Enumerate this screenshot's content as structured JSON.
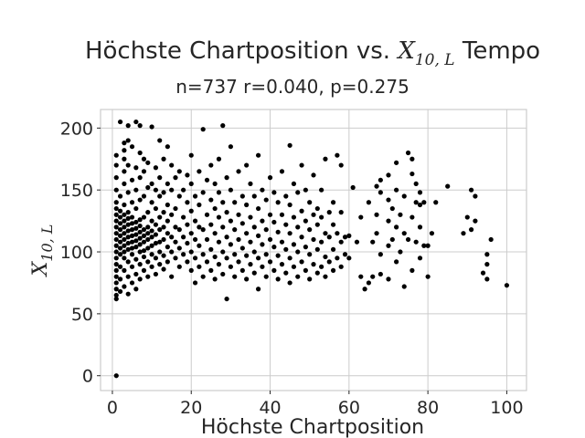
{
  "chart_data": {
    "type": "scatter",
    "title": {
      "prefix": "Höchste Chartposition vs. ",
      "math_base": "X",
      "math_sub": "10, L",
      "suffix": " Tempo"
    },
    "subtitle": "n=737 r=0.040, p=0.275",
    "xlabel": "Höchste Chartposition",
    "ylabel": {
      "math_base": "X",
      "math_sub": "10, L"
    },
    "xlim": [
      -3,
      105
    ],
    "ylim": [
      -12,
      215
    ],
    "xticks": [
      0,
      20,
      40,
      60,
      80,
      100
    ],
    "yticks": [
      0,
      50,
      100,
      150,
      200
    ],
    "grid": true,
    "marker_color": "#000000",
    "points": [
      [
        1,
        0
      ],
      [
        1,
        62
      ],
      [
        1,
        65
      ],
      [
        1,
        70
      ],
      [
        1,
        75
      ],
      [
        1,
        80
      ],
      [
        1,
        85
      ],
      [
        1,
        90
      ],
      [
        1,
        95
      ],
      [
        1,
        100
      ],
      [
        1,
        105
      ],
      [
        1,
        110
      ],
      [
        1,
        115
      ],
      [
        1,
        120
      ],
      [
        1,
        125
      ],
      [
        1,
        130
      ],
      [
        1,
        135
      ],
      [
        1,
        140
      ],
      [
        1,
        150
      ],
      [
        1,
        160
      ],
      [
        1,
        170
      ],
      [
        1,
        178
      ],
      [
        2,
        68
      ],
      [
        2,
        78
      ],
      [
        2,
        88
      ],
      [
        2,
        98
      ],
      [
        2,
        103
      ],
      [
        2,
        108
      ],
      [
        2,
        113
      ],
      [
        2,
        118
      ],
      [
        2,
        123
      ],
      [
        2,
        128
      ],
      [
        2,
        133
      ],
      [
        2,
        145
      ],
      [
        2,
        205
      ],
      [
        3,
        72
      ],
      [
        3,
        85
      ],
      [
        3,
        95
      ],
      [
        3,
        100
      ],
      [
        3,
        105
      ],
      [
        3,
        110
      ],
      [
        3,
        115
      ],
      [
        3,
        120
      ],
      [
        3,
        125
      ],
      [
        3,
        130
      ],
      [
        3,
        138
      ],
      [
        3,
        155
      ],
      [
        3,
        165
      ],
      [
        3,
        175
      ],
      [
        3,
        182
      ],
      [
        3,
        188
      ],
      [
        4,
        66
      ],
      [
        4,
        80
      ],
      [
        4,
        92
      ],
      [
        4,
        102
      ],
      [
        4,
        107
      ],
      [
        4,
        112
      ],
      [
        4,
        117
      ],
      [
        4,
        122
      ],
      [
        4,
        127
      ],
      [
        4,
        132
      ],
      [
        4,
        148
      ],
      [
        4,
        170
      ],
      [
        4,
        190
      ],
      [
        4,
        202
      ],
      [
        5,
        75
      ],
      [
        5,
        88
      ],
      [
        5,
        98
      ],
      [
        5,
        103
      ],
      [
        5,
        108
      ],
      [
        5,
        113
      ],
      [
        5,
        118
      ],
      [
        5,
        123
      ],
      [
        5,
        128
      ],
      [
        5,
        140
      ],
      [
        5,
        158
      ],
      [
        5,
        185
      ],
      [
        6,
        70
      ],
      [
        6,
        82
      ],
      [
        6,
        94
      ],
      [
        6,
        104
      ],
      [
        6,
        109
      ],
      [
        6,
        114
      ],
      [
        6,
        119
      ],
      [
        6,
        124
      ],
      [
        6,
        135
      ],
      [
        6,
        150
      ],
      [
        6,
        168
      ],
      [
        6,
        205
      ],
      [
        7,
        78
      ],
      [
        7,
        90
      ],
      [
        7,
        100
      ],
      [
        7,
        106
      ],
      [
        7,
        111
      ],
      [
        7,
        116
      ],
      [
        7,
        121
      ],
      [
        7,
        126
      ],
      [
        7,
        142
      ],
      [
        7,
        160
      ],
      [
        7,
        180
      ],
      [
        7,
        202
      ],
      [
        8,
        85
      ],
      [
        8,
        96
      ],
      [
        8,
        101
      ],
      [
        8,
        108
      ],
      [
        8,
        113
      ],
      [
        8,
        118
      ],
      [
        8,
        128
      ],
      [
        8,
        145
      ],
      [
        8,
        165
      ],
      [
        8,
        175
      ],
      [
        9,
        80
      ],
      [
        9,
        92
      ],
      [
        9,
        103
      ],
      [
        9,
        110
      ],
      [
        9,
        115
      ],
      [
        9,
        120
      ],
      [
        9,
        132
      ],
      [
        9,
        152
      ],
      [
        9,
        172
      ],
      [
        10,
        88
      ],
      [
        10,
        98
      ],
      [
        10,
        105
      ],
      [
        10,
        112
      ],
      [
        10,
        117
      ],
      [
        10,
        125
      ],
      [
        10,
        140
      ],
      [
        10,
        155
      ],
      [
        10,
        201
      ],
      [
        11,
        82
      ],
      [
        11,
        95
      ],
      [
        11,
        107
      ],
      [
        11,
        114
      ],
      [
        11,
        122
      ],
      [
        11,
        135
      ],
      [
        11,
        150
      ],
      [
        11,
        168
      ],
      [
        12,
        90
      ],
      [
        12,
        100
      ],
      [
        12,
        108
      ],
      [
        12,
        118
      ],
      [
        12,
        128
      ],
      [
        12,
        145
      ],
      [
        12,
        160
      ],
      [
        12,
        190
      ],
      [
        13,
        86
      ],
      [
        13,
        97
      ],
      [
        13,
        110
      ],
      [
        13,
        120
      ],
      [
        13,
        132
      ],
      [
        13,
        148
      ],
      [
        13,
        175
      ],
      [
        14,
        92
      ],
      [
        14,
        104
      ],
      [
        14,
        115
      ],
      [
        14,
        125
      ],
      [
        14,
        138
      ],
      [
        14,
        155
      ],
      [
        14,
        185
      ],
      [
        15,
        80
      ],
      [
        15,
        100
      ],
      [
        15,
        112
      ],
      [
        15,
        130
      ],
      [
        15,
        150
      ],
      [
        15,
        170
      ],
      [
        16,
        95
      ],
      [
        16,
        108
      ],
      [
        16,
        120
      ],
      [
        16,
        135
      ],
      [
        16,
        160
      ],
      [
        17,
        88
      ],
      [
        17,
        103
      ],
      [
        17,
        118
      ],
      [
        17,
        145
      ],
      [
        17,
        165
      ],
      [
        18,
        98
      ],
      [
        18,
        112
      ],
      [
        18,
        128
      ],
      [
        18,
        150
      ],
      [
        19,
        92
      ],
      [
        19,
        107
      ],
      [
        19,
        122
      ],
      [
        19,
        140
      ],
      [
        19,
        162
      ],
      [
        20,
        85
      ],
      [
        20,
        100
      ],
      [
        20,
        115
      ],
      [
        20,
        133
      ],
      [
        20,
        155
      ],
      [
        20,
        178
      ],
      [
        21,
        75
      ],
      [
        21,
        95
      ],
      [
        21,
        110
      ],
      [
        21,
        125
      ],
      [
        21,
        145
      ],
      [
        22,
        88
      ],
      [
        22,
        105
      ],
      [
        22,
        120
      ],
      [
        22,
        138
      ],
      [
        22,
        165
      ],
      [
        23,
        80
      ],
      [
        23,
        98
      ],
      [
        23,
        118
      ],
      [
        23,
        148
      ],
      [
        23,
        199
      ],
      [
        24,
        92
      ],
      [
        24,
        110
      ],
      [
        24,
        130
      ],
      [
        24,
        158
      ],
      [
        25,
        85
      ],
      [
        25,
        102
      ],
      [
        25,
        122
      ],
      [
        25,
        142
      ],
      [
        25,
        170
      ],
      [
        26,
        78
      ],
      [
        26,
        96
      ],
      [
        26,
        115
      ],
      [
        26,
        135
      ],
      [
        26,
        155
      ],
      [
        27,
        90
      ],
      [
        27,
        108
      ],
      [
        27,
        128
      ],
      [
        27,
        148
      ],
      [
        27,
        175
      ],
      [
        28,
        82
      ],
      [
        28,
        100
      ],
      [
        28,
        120
      ],
      [
        28,
        140
      ],
      [
        28,
        202
      ],
      [
        29,
        62
      ],
      [
        29,
        95
      ],
      [
        29,
        112
      ],
      [
        29,
        132
      ],
      [
        29,
        160
      ],
      [
        30,
        88
      ],
      [
        30,
        106
      ],
      [
        30,
        125
      ],
      [
        30,
        150
      ],
      [
        30,
        185
      ],
      [
        31,
        80
      ],
      [
        31,
        98
      ],
      [
        31,
        118
      ],
      [
        31,
        140
      ],
      [
        32,
        92
      ],
      [
        32,
        110
      ],
      [
        32,
        130
      ],
      [
        32,
        165
      ],
      [
        33,
        85
      ],
      [
        33,
        103
      ],
      [
        33,
        123
      ],
      [
        33,
        145
      ],
      [
        34,
        78
      ],
      [
        34,
        97
      ],
      [
        34,
        115
      ],
      [
        34,
        138
      ],
      [
        34,
        170
      ],
      [
        35,
        90
      ],
      [
        35,
        108
      ],
      [
        35,
        128
      ],
      [
        35,
        155
      ],
      [
        36,
        83
      ],
      [
        36,
        100
      ],
      [
        36,
        120
      ],
      [
        36,
        145
      ],
      [
        37,
        70
      ],
      [
        37,
        95
      ],
      [
        37,
        113
      ],
      [
        37,
        135
      ],
      [
        37,
        178
      ],
      [
        38,
        88
      ],
      [
        38,
        106
      ],
      [
        38,
        125
      ],
      [
        38,
        150
      ],
      [
        39,
        80
      ],
      [
        39,
        98
      ],
      [
        39,
        118
      ],
      [
        39,
        142
      ],
      [
        40,
        92
      ],
      [
        40,
        110
      ],
      [
        40,
        130
      ],
      [
        40,
        160
      ],
      [
        41,
        85
      ],
      [
        41,
        104
      ],
      [
        41,
        124
      ],
      [
        41,
        148
      ],
      [
        42,
        78
      ],
      [
        42,
        97
      ],
      [
        42,
        116
      ],
      [
        42,
        140
      ],
      [
        43,
        90
      ],
      [
        43,
        108
      ],
      [
        43,
        130
      ],
      [
        43,
        165
      ],
      [
        44,
        83
      ],
      [
        44,
        102
      ],
      [
        44,
        122
      ],
      [
        44,
        145
      ],
      [
        45,
        75
      ],
      [
        45,
        95
      ],
      [
        45,
        115
      ],
      [
        45,
        138
      ],
      [
        45,
        186
      ],
      [
        46,
        88
      ],
      [
        46,
        106
      ],
      [
        46,
        128
      ],
      [
        46,
        155
      ],
      [
        47,
        80
      ],
      [
        47,
        100
      ],
      [
        47,
        120
      ],
      [
        47,
        148
      ],
      [
        48,
        92
      ],
      [
        48,
        112
      ],
      [
        48,
        133
      ],
      [
        48,
        170
      ],
      [
        49,
        85
      ],
      [
        49,
        104
      ],
      [
        49,
        125
      ],
      [
        49,
        150
      ],
      [
        50,
        78
      ],
      [
        50,
        98
      ],
      [
        50,
        118
      ],
      [
        50,
        140
      ],
      [
        51,
        90
      ],
      [
        51,
        110
      ],
      [
        51,
        130
      ],
      [
        51,
        162
      ],
      [
        52,
        83
      ],
      [
        52,
        102
      ],
      [
        52,
        122
      ],
      [
        52,
        135
      ],
      [
        53,
        88
      ],
      [
        53,
        108
      ],
      [
        53,
        128
      ],
      [
        53,
        150
      ],
      [
        54,
        80
      ],
      [
        54,
        96
      ],
      [
        54,
        115
      ],
      [
        54,
        175
      ],
      [
        55,
        92
      ],
      [
        55,
        112
      ],
      [
        55,
        132
      ],
      [
        56,
        85
      ],
      [
        56,
        102
      ],
      [
        56,
        122
      ],
      [
        56,
        140
      ],
      [
        57,
        95
      ],
      [
        57,
        115
      ],
      [
        57,
        178
      ],
      [
        58,
        88
      ],
      [
        58,
        108
      ],
      [
        58,
        132
      ],
      [
        58,
        170
      ],
      [
        59,
        98
      ],
      [
        59,
        112
      ],
      [
        60,
        95
      ],
      [
        60,
        113
      ],
      [
        61,
        152
      ],
      [
        62,
        108
      ],
      [
        63,
        80
      ],
      [
        63,
        128
      ],
      [
        64,
        70
      ],
      [
        65,
        75
      ],
      [
        65,
        140
      ],
      [
        66,
        80
      ],
      [
        66,
        108
      ],
      [
        67,
        115
      ],
      [
        67,
        130
      ],
      [
        67,
        153
      ],
      [
        68,
        82
      ],
      [
        68,
        98
      ],
      [
        68,
        148
      ],
      [
        68,
        158
      ],
      [
        70,
        78
      ],
      [
        70,
        105
      ],
      [
        70,
        125
      ],
      [
        70,
        142
      ],
      [
        70,
        162
      ],
      [
        71,
        110
      ],
      [
        71,
        135
      ],
      [
        72,
        92
      ],
      [
        72,
        120
      ],
      [
        72,
        150
      ],
      [
        72,
        172
      ],
      [
        73,
        100
      ],
      [
        73,
        130
      ],
      [
        74,
        72
      ],
      [
        74,
        115
      ],
      [
        74,
        145
      ],
      [
        75,
        110
      ],
      [
        75,
        180
      ],
      [
        76,
        85
      ],
      [
        76,
        128
      ],
      [
        76,
        163
      ],
      [
        76,
        175
      ],
      [
        77,
        108
      ],
      [
        77,
        140
      ],
      [
        77,
        155
      ],
      [
        78,
        95
      ],
      [
        78,
        120
      ],
      [
        78,
        138
      ],
      [
        78,
        148
      ],
      [
        79,
        105
      ],
      [
        79,
        140
      ],
      [
        80,
        80
      ],
      [
        80,
        105
      ],
      [
        81,
        115
      ],
      [
        82,
        140
      ],
      [
        85,
        153
      ],
      [
        89,
        115
      ],
      [
        90,
        128
      ],
      [
        91,
        118
      ],
      [
        91,
        150
      ],
      [
        92,
        125
      ],
      [
        92,
        145
      ],
      [
        94,
        83
      ],
      [
        95,
        78
      ],
      [
        95,
        90
      ],
      [
        95,
        98
      ],
      [
        96,
        110
      ],
      [
        100,
        73
      ]
    ]
  }
}
